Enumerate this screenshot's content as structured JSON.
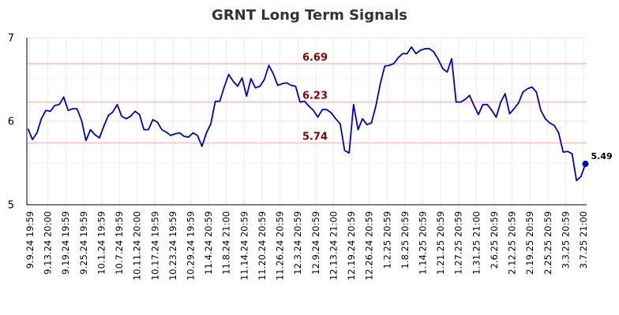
{
  "chart_data": {
    "type": "line",
    "title": "GRNT Long Term Signals",
    "xlabel": "",
    "ylabel": "",
    "ylim": [
      5,
      7
    ],
    "yticks": [
      "5",
      "6",
      "7"
    ],
    "xtick_labels": [
      "9.9.24 19:59",
      "9.13.24 20:00",
      "9.19.24 19:59",
      "9.25.24 19:59",
      "10.1.24 19:59",
      "10.7.24 19:59",
      "10.11.24 20:00",
      "10.17.24 19:59",
      "10.23.24 19:59",
      "10.29.24 19:59",
      "11.4.24 20:59",
      "11.8.24 21:00",
      "11.14.24 20:59",
      "11.20.24 20:59",
      "11.26.24 20:59",
      "12.3.24 20:59",
      "12.9.24 20:59",
      "12.13.24 21:00",
      "12.19.24 20:59",
      "12.26.24 20:59",
      "1.2.25 20:59",
      "1.8.25 20:59",
      "1.14.25 20:59",
      "1.21.25 20:59",
      "1.27.25 20:59",
      "1.31.25 21:00",
      "2.6.25 20:59",
      "2.12.25 20:59",
      "2.19.25 20:59",
      "2.25.25 20:59",
      "3.3.25 20:59",
      "3.7.25 21:00"
    ],
    "grid": true,
    "line_color": "#0000cc",
    "level_line_color": "#ffc8c8",
    "level_label_color": "#8b0000",
    "levels": [
      {
        "value": 6.69,
        "label": "6.69"
      },
      {
        "value": 6.23,
        "label": "6.23"
      },
      {
        "value": 5.74,
        "label": "5.74"
      }
    ],
    "last_value": {
      "value": 5.49,
      "label": "5.49"
    },
    "series": [
      {
        "values": [
          5.91,
          5.78,
          5.86,
          6.03,
          6.13,
          6.12,
          6.19,
          6.2,
          6.29,
          6.13,
          6.15,
          6.15,
          6.01,
          5.77,
          5.9,
          5.84,
          5.8,
          5.94,
          6.07,
          6.11,
          6.2,
          6.06,
          6.03,
          6.06,
          6.12,
          6.08,
          5.9,
          5.9,
          6.02,
          5.99,
          5.9,
          5.87,
          5.83,
          5.85,
          5.86,
          5.82,
          5.81,
          5.86,
          5.83,
          5.7,
          5.86,
          5.97,
          6.24,
          6.24,
          6.41,
          6.56,
          6.48,
          6.42,
          6.52,
          6.3,
          6.51,
          6.4,
          6.42,
          6.5,
          6.67,
          6.57,
          6.43,
          6.45,
          6.46,
          6.43,
          6.42,
          6.23,
          6.24,
          6.18,
          6.13,
          6.05,
          6.14,
          6.14,
          6.1,
          6.03,
          5.97,
          5.65,
          5.62,
          6.2,
          5.9,
          6.03,
          5.96,
          5.98,
          6.18,
          6.45,
          6.66,
          6.67,
          6.69,
          6.76,
          6.81,
          6.81,
          6.89,
          6.81,
          6.85,
          6.87,
          6.87,
          6.83,
          6.74,
          6.63,
          6.59,
          6.75,
          6.23,
          6.23,
          6.26,
          6.31,
          6.19,
          6.08,
          6.2,
          6.2,
          6.13,
          6.05,
          6.23,
          6.33,
          6.09,
          6.15,
          6.22,
          6.35,
          6.39,
          6.41,
          6.35,
          6.13,
          6.03,
          5.98,
          5.95,
          5.86,
          5.63,
          5.64,
          5.61,
          5.29,
          5.34,
          5.49
        ]
      }
    ]
  }
}
